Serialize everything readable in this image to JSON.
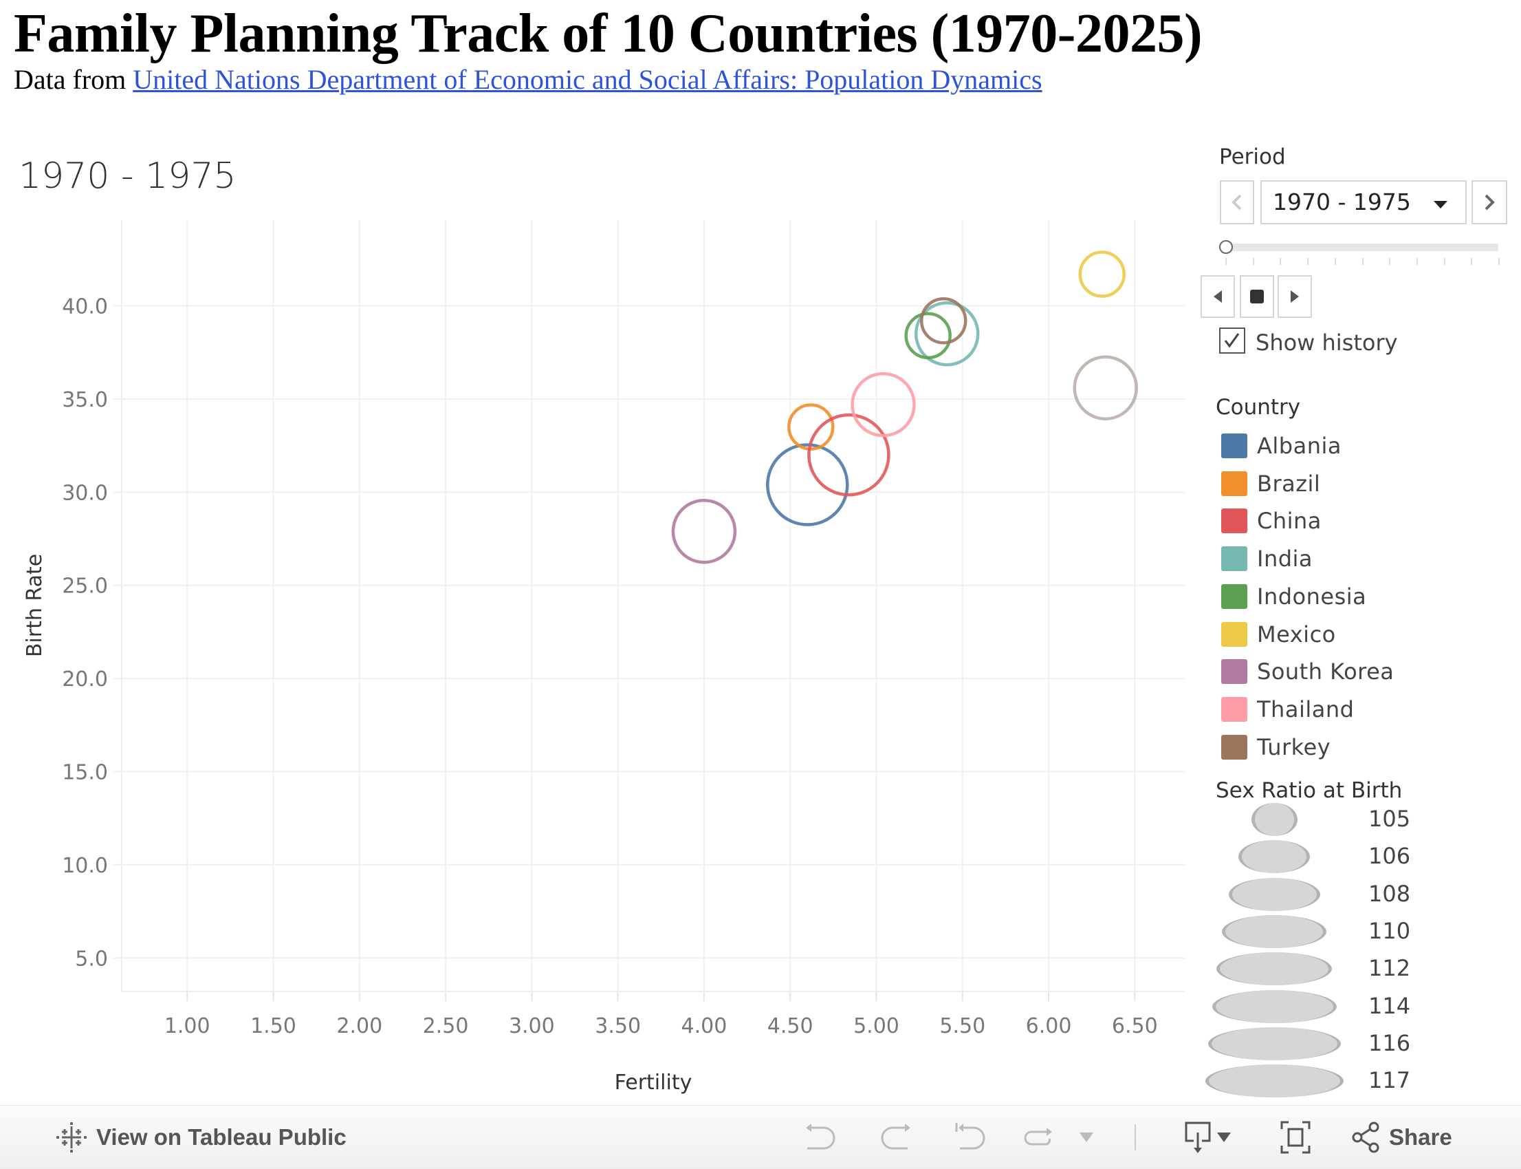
{
  "header": {
    "title": "Family Planning Track of 10 Countries (1970-2025)",
    "subtitle_prefix": "Data from ",
    "subtitle_link": "United Nations Department of Economic and Social Affairs: Population Dynamics"
  },
  "period_heading": "1970 - 1975",
  "controls": {
    "period_label": "Period",
    "period_value": "1970 - 1975",
    "slider_position": 0,
    "slider_steps": 11,
    "show_history_label": "Show history",
    "show_history_checked": true
  },
  "legend": {
    "color_title": "Country",
    "countries": [
      {
        "name": "Albania",
        "color": "#4e79a7"
      },
      {
        "name": "Brazil",
        "color": "#f28e2b"
      },
      {
        "name": "China",
        "color": "#e15759"
      },
      {
        "name": "India",
        "color": "#76b7b2"
      },
      {
        "name": "Indonesia",
        "color": "#59a14f"
      },
      {
        "name": "Mexico",
        "color": "#edc948"
      },
      {
        "name": "South Korea",
        "color": "#b07aa1"
      },
      {
        "name": "Thailand",
        "color": "#ff9da7"
      },
      {
        "name": "Turkey",
        "color": "#9c755f"
      }
    ],
    "size_title": "Sex Ratio at Birth",
    "sizes": [
      "105",
      "106",
      "108",
      "110",
      "112",
      "114",
      "116",
      "117"
    ]
  },
  "toolbar": {
    "view_on_tableau": "View on Tableau Public",
    "share": "Share"
  },
  "chart_data": {
    "type": "scatter",
    "title": "1970 - 1975",
    "xlabel": "Fertility",
    "ylabel": "Birth Rate",
    "xlim": [
      0.62,
      6.79
    ],
    "ylim": [
      3.2,
      44.6
    ],
    "grid": true,
    "x_ticks": [
      "1.00",
      "1.50",
      "2.00",
      "2.50",
      "3.00",
      "3.50",
      "4.00",
      "4.50",
      "5.00",
      "5.50",
      "6.00",
      "6.50"
    ],
    "x_tick_values": [
      1.0,
      1.5,
      2.0,
      2.5,
      3.0,
      3.5,
      4.0,
      4.5,
      5.0,
      5.5,
      6.0,
      6.5
    ],
    "y_ticks": [
      "5.0",
      "10.0",
      "15.0",
      "20.0",
      "25.0",
      "30.0",
      "35.0",
      "40.0"
    ],
    "y_tick_values": [
      5,
      10,
      15,
      20,
      25,
      30,
      35,
      40
    ],
    "size_field": "Sex Ratio at Birth",
    "size_range": [
      105,
      117
    ],
    "legend_position": "right",
    "points": [
      {
        "country": "Albania",
        "fertility": 4.6,
        "birth_rate": 30.4,
        "sex_ratio": 107,
        "color": "#4e79a7"
      },
      {
        "country": "Brazil",
        "fertility": 4.62,
        "birth_rate": 33.5,
        "sex_ratio": 105,
        "color": "#f28e2b"
      },
      {
        "country": "China",
        "fertility": 4.84,
        "birth_rate": 32.0,
        "sex_ratio": 107,
        "color": "#e15759"
      },
      {
        "country": "India",
        "fertility": 5.41,
        "birth_rate": 38.5,
        "sex_ratio": 106,
        "color": "#76b7b2"
      },
      {
        "country": "Indonesia",
        "fertility": 5.3,
        "birth_rate": 38.4,
        "sex_ratio": 105,
        "color": "#59a14f"
      },
      {
        "country": "Mexico",
        "fertility": 6.31,
        "birth_rate": 41.7,
        "sex_ratio": 105,
        "color": "#edc948"
      },
      {
        "country": "South Korea",
        "fertility": 4.0,
        "birth_rate": 27.9,
        "sex_ratio": 106,
        "color": "#b07aa1"
      },
      {
        "country": "Thailand",
        "fertility": 5.04,
        "birth_rate": 34.7,
        "sex_ratio": 106,
        "color": "#ff9da7"
      },
      {
        "country": "Turkey",
        "fertility": 5.39,
        "birth_rate": 39.2,
        "sex_ratio": 105,
        "color": "#9c755f"
      },
      {
        "country": "",
        "fertility": 6.33,
        "birth_rate": 35.6,
        "sex_ratio": 106,
        "color": "#bab0ac"
      }
    ]
  }
}
